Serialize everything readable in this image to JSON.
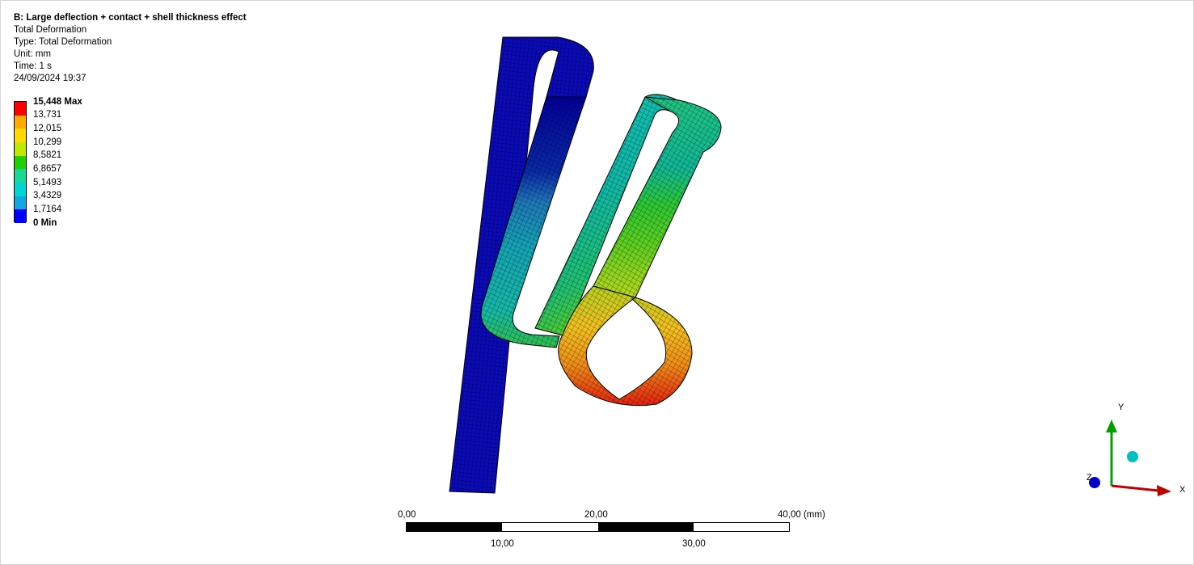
{
  "info": {
    "title": "B: Large deflection + contact + shell thickness effect",
    "result": "Total Deformation",
    "type": "Type: Total Deformation",
    "unit": "Unit: mm",
    "time": "Time: 1 s",
    "date": "24/09/2024 19:37"
  },
  "legend": {
    "labels": [
      "15,448 Max",
      "13,731",
      "12,015",
      "10,299",
      "8,5821",
      "6,8657",
      "5,1493",
      "3,4329",
      "1,7164",
      "0 Min"
    ],
    "colors": [
      "#ff0000",
      "#ffaa00",
      "#ffd900",
      "#bfea00",
      "#22d000",
      "#1bd89a",
      "#00d5d5",
      "#12a7e0",
      "#0000ff"
    ]
  },
  "scale": {
    "top_labels": [
      "0,00",
      "20,00",
      "40,00 (mm)"
    ],
    "bottom_labels": [
      "10,00",
      "30,00"
    ],
    "segment_colors": [
      "#000000",
      "#ffffff",
      "#000000",
      "#ffffff"
    ]
  },
  "triad": {
    "x_label": "X",
    "y_label": "Y",
    "z_label": "Z",
    "x_color": "#c00000",
    "y_color": "#00a000",
    "z_color": "#0000c8",
    "iso_color": "#00c0c0"
  }
}
